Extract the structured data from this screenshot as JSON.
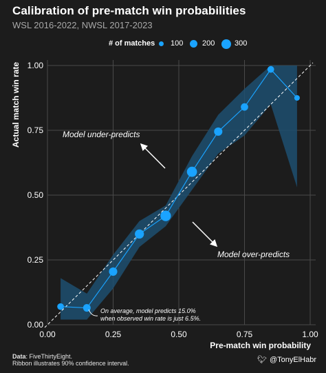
{
  "header": {
    "title": "Calibration of pre-match win probabilities",
    "subtitle": "WSL 2016-2022, NWSL 2017-2023"
  },
  "legend": {
    "title": "# of matches",
    "items": [
      {
        "label": "100",
        "size": 100
      },
      {
        "label": "200",
        "size": 200
      },
      {
        "label": "300",
        "size": 300
      }
    ]
  },
  "colors": {
    "background": "#1c1c1c",
    "accent": "#1aa3ff",
    "ribbon": "#1d4f70",
    "grid": "#4a4a4a"
  },
  "annotations": {
    "under": "Model under-predicts",
    "over": "Model over-predicts",
    "note_line1": "On average, model predicts 15.0%",
    "note_line2": "when observed win rate is just 6.5%."
  },
  "footer": {
    "data_label": "Data",
    "data_value": ": FiveThirtyEight.",
    "ribbon_note": "Ribbon illustrates 90% confidence interval.",
    "handle": "@TonyElHabr"
  },
  "chart_data": {
    "type": "line",
    "title": "Calibration of pre-match win probabilities",
    "subtitle": "WSL 2016-2022, NWSL 2017-2023",
    "xlabel": "Pre-match win probability",
    "ylabel": "Actual match win rate",
    "xlim": [
      0,
      1
    ],
    "ylim": [
      0,
      1
    ],
    "xticks": [
      "0.00",
      "0.25",
      "0.50",
      "0.75",
      "1.00"
    ],
    "yticks": [
      "0.00",
      "0.25",
      "0.50",
      "0.75",
      "1.00"
    ],
    "grid": true,
    "legend_position": "top",
    "reference_line": "y = x (dashed)",
    "series": [
      {
        "x": [
          0.05,
          0.15,
          0.25,
          0.35,
          0.45,
          0.55,
          0.65,
          0.75,
          0.85,
          0.95
        ],
        "y": [
          0.07,
          0.065,
          0.205,
          0.35,
          0.42,
          0.59,
          0.745,
          0.84,
          0.985,
          0.875
        ],
        "n": [
          80,
          120,
          160,
          210,
          310,
          280,
          160,
          110,
          80,
          40
        ],
        "lower": [
          0.02,
          0.02,
          0.14,
          0.3,
          0.38,
          0.52,
          0.66,
          0.73,
          0.85,
          0.53
        ],
        "upper": [
          0.18,
          0.12,
          0.27,
          0.4,
          0.46,
          0.65,
          0.81,
          0.91,
          1.0,
          1.0
        ]
      }
    ]
  }
}
